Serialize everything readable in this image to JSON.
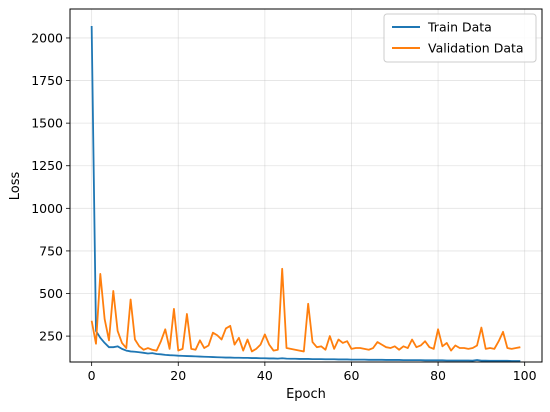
{
  "chart_data": {
    "type": "line",
    "xlabel": "Epoch",
    "ylabel": "Loss",
    "xlim": [
      -5,
      104
    ],
    "ylim": [
      98,
      2170
    ],
    "xticks": [
      0,
      20,
      40,
      60,
      80,
      100
    ],
    "yticks": [
      250,
      500,
      750,
      1000,
      1250,
      1500,
      1750,
      2000
    ],
    "grid": true,
    "legend": "top-right",
    "series": [
      {
        "name": "Train Data",
        "color": "#1f77b4",
        "x": [
          0,
          1,
          2,
          3,
          4,
          5,
          6,
          7,
          8,
          9,
          10,
          11,
          12,
          13,
          14,
          15,
          16,
          17,
          18,
          19,
          20,
          21,
          22,
          23,
          24,
          25,
          26,
          27,
          28,
          29,
          30,
          31,
          32,
          33,
          34,
          35,
          36,
          37,
          38,
          39,
          40,
          41,
          42,
          43,
          44,
          45,
          46,
          47,
          48,
          49,
          50,
          51,
          52,
          53,
          54,
          55,
          56,
          57,
          58,
          59,
          60,
          61,
          62,
          63,
          64,
          65,
          66,
          67,
          68,
          69,
          70,
          71,
          72,
          73,
          74,
          75,
          76,
          77,
          78,
          79,
          80,
          81,
          82,
          83,
          84,
          85,
          86,
          87,
          88,
          89,
          90,
          91,
          92,
          93,
          94,
          95,
          96,
          97,
          98,
          99
        ],
        "values": [
          2070,
          280,
          240,
          210,
          185,
          185,
          190,
          175,
          165,
          160,
          158,
          155,
          152,
          148,
          150,
          145,
          143,
          140,
          138,
          137,
          135,
          134,
          133,
          132,
          131,
          130,
          129,
          128,
          127,
          126,
          125,
          124,
          124,
          123,
          123,
          122,
          122,
          121,
          121,
          120,
          120,
          119,
          119,
          118,
          120,
          118,
          117,
          117,
          116,
          116,
          116,
          115,
          115,
          115,
          114,
          114,
          114,
          113,
          113,
          113,
          112,
          112,
          112,
          112,
          111,
          111,
          111,
          111,
          110,
          110,
          110,
          110,
          109,
          109,
          109,
          109,
          109,
          108,
          108,
          108,
          108,
          108,
          107,
          107,
          107,
          107,
          107,
          107,
          106,
          110,
          106,
          106,
          105,
          105,
          105,
          105,
          105,
          104,
          104,
          104
        ]
      },
      {
        "name": "Validation Data",
        "color": "#ff7f0e",
        "x": [
          0,
          1,
          2,
          3,
          4,
          5,
          6,
          7,
          8,
          9,
          10,
          11,
          12,
          13,
          14,
          15,
          16,
          17,
          18,
          19,
          20,
          21,
          22,
          23,
          24,
          25,
          26,
          27,
          28,
          29,
          30,
          31,
          32,
          33,
          34,
          35,
          36,
          37,
          38,
          39,
          40,
          41,
          42,
          43,
          44,
          45,
          46,
          47,
          48,
          49,
          50,
          51,
          52,
          53,
          54,
          55,
          56,
          57,
          58,
          59,
          60,
          61,
          62,
          63,
          64,
          65,
          66,
          67,
          68,
          69,
          70,
          71,
          72,
          73,
          74,
          75,
          76,
          77,
          78,
          79,
          80,
          81,
          82,
          83,
          84,
          85,
          86,
          87,
          88,
          89,
          90,
          91,
          92,
          93,
          94,
          95,
          96,
          97,
          98,
          99
        ],
        "values": [
          340,
          205,
          615,
          350,
          225,
          515,
          280,
          210,
          180,
          465,
          230,
          190,
          170,
          180,
          170,
          165,
          220,
          290,
          175,
          410,
          165,
          175,
          380,
          175,
          170,
          225,
          180,
          195,
          270,
          255,
          230,
          295,
          310,
          200,
          240,
          165,
          230,
          160,
          175,
          200,
          260,
          200,
          165,
          170,
          645,
          180,
          175,
          170,
          165,
          160,
          440,
          215,
          185,
          190,
          170,
          250,
          175,
          230,
          210,
          220,
          175,
          180,
          180,
          175,
          170,
          180,
          215,
          200,
          185,
          180,
          190,
          170,
          190,
          180,
          230,
          185,
          195,
          220,
          185,
          175,
          290,
          190,
          210,
          165,
          195,
          180,
          180,
          175,
          180,
          195,
          300,
          175,
          180,
          175,
          220,
          275,
          180,
          175,
          180,
          185
        ]
      }
    ]
  }
}
